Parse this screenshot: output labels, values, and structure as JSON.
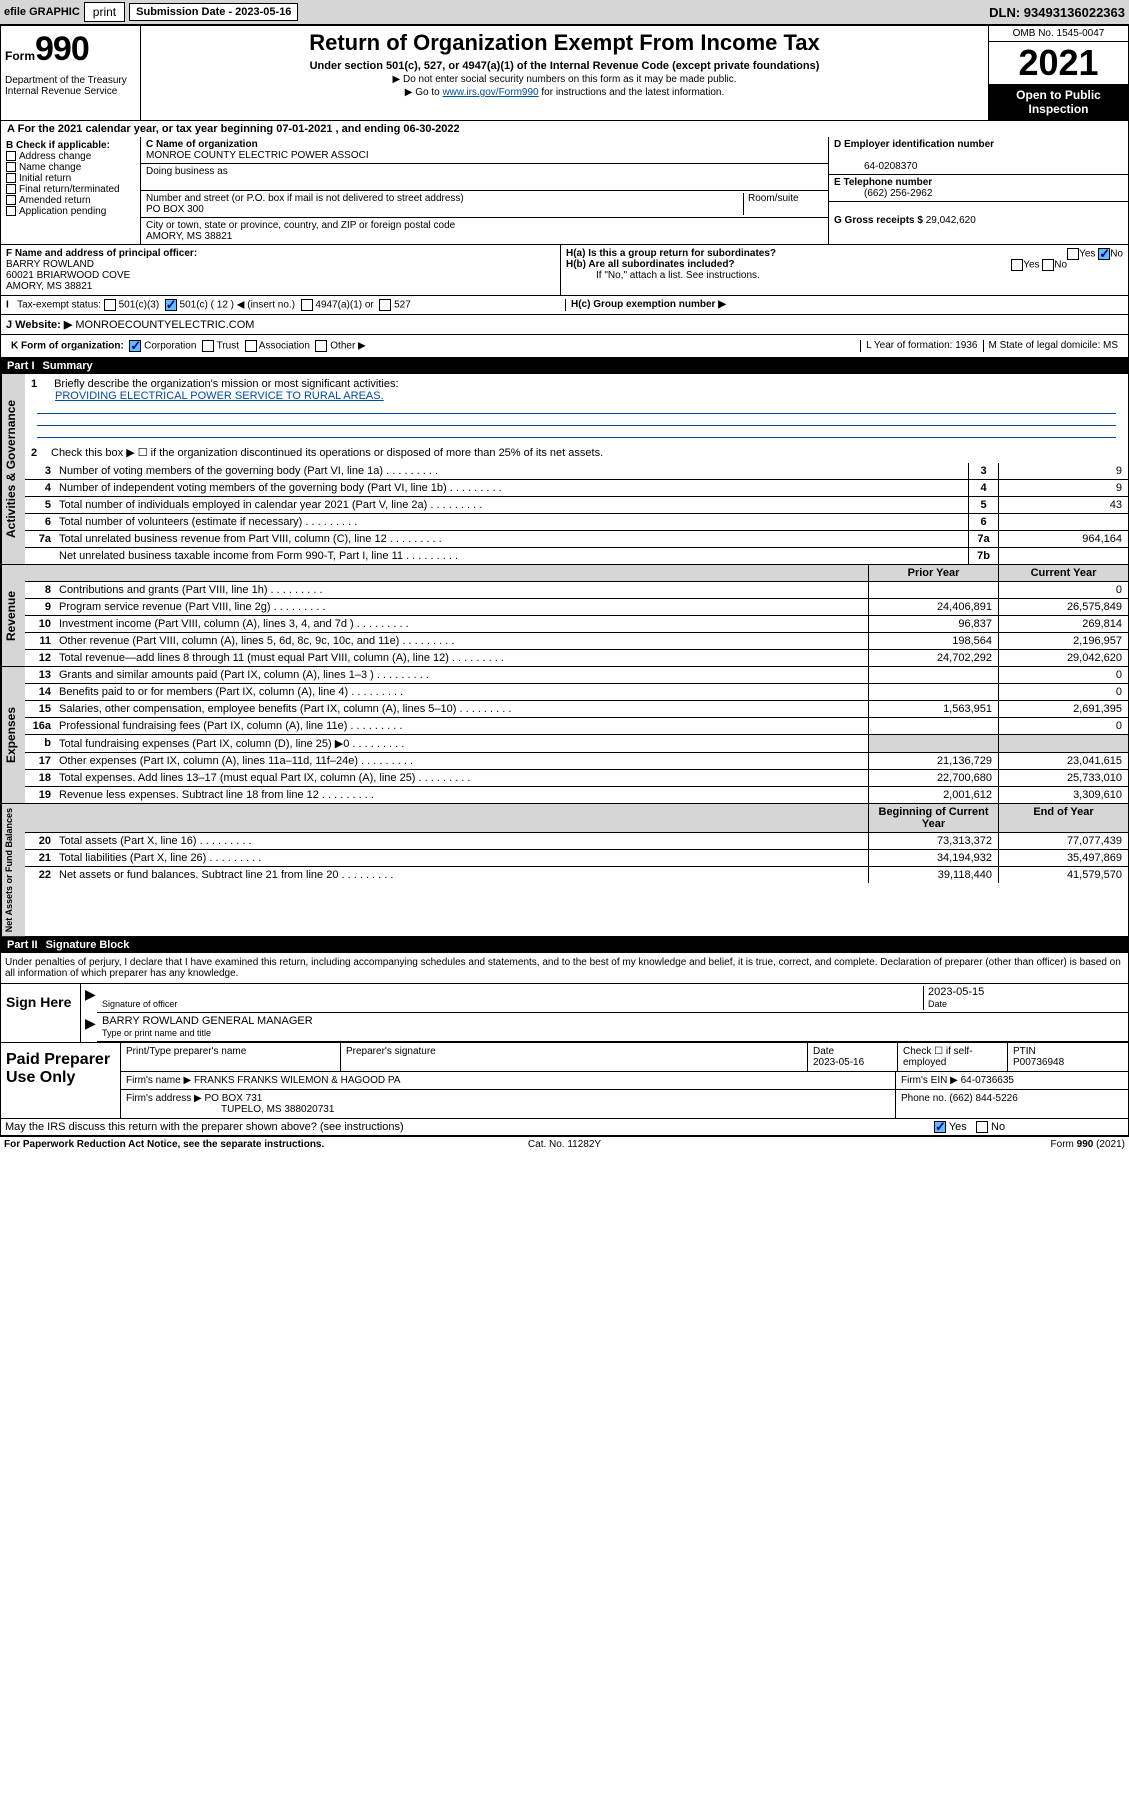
{
  "topbar": {
    "efile": "efile GRAPHIC",
    "print": "print",
    "subdate_label": "Submission Date - 2023-05-16",
    "dln": "DLN: 93493136022363"
  },
  "header": {
    "form_prefix": "Form",
    "form_number": "990",
    "dept": "Department of the Treasury\nInternal Revenue Service",
    "title": "Return of Organization Exempt From Income Tax",
    "subtitle": "Under section 501(c), 527, or 4947(a)(1) of the Internal Revenue Code (except private foundations)",
    "note1": "▶ Do not enter social security numbers on this form as it may be made public.",
    "note2_pre": "▶ Go to ",
    "note2_link": "www.irs.gov/Form990",
    "note2_post": " for instructions and the latest information.",
    "omb": "OMB No. 1545-0047",
    "year": "2021",
    "open": "Open to Public Inspection"
  },
  "period": {
    "text": "For the 2021 calendar year, or tax year beginning 07-01-2021   , and ending 06-30-2022",
    "label": "A"
  },
  "section_b": {
    "label": "B Check if applicable:",
    "opts": [
      "Address change",
      "Name change",
      "Initial return",
      "Final return/terminated",
      "Amended return",
      "Application pending"
    ]
  },
  "section_c": {
    "name_label": "C Name of organization",
    "name": "MONROE COUNTY ELECTRIC POWER ASSOCI",
    "dba_label": "Doing business as",
    "dba": "",
    "addr_label": "Number and street (or P.O. box if mail is not delivered to street address)",
    "room_label": "Room/suite",
    "addr": "PO BOX 300",
    "city_label": "City or town, state or province, country, and ZIP or foreign postal code",
    "city": "AMORY, MS  38821"
  },
  "section_d": {
    "label": "D Employer identification number",
    "value": "64-0208370"
  },
  "section_e": {
    "label": "E Telephone number",
    "value": "(662) 256-2962"
  },
  "section_g": {
    "label": "G Gross receipts $",
    "value": "29,042,620"
  },
  "section_f": {
    "label": "F  Name and address of principal officer:",
    "name": "BARRY ROWLAND",
    "addr1": "60021 BRIARWOOD COVE",
    "addr2": "AMORY, MS  38821"
  },
  "section_h": {
    "ha": "H(a)  Is this a group return for subordinates?",
    "hb": "H(b)  Are all subordinates included?",
    "hb_note": "If \"No,\" attach a list. See instructions.",
    "hc": "H(c)  Group exemption number ▶",
    "yes": "Yes",
    "no": "No"
  },
  "section_i": {
    "label": "Tax-exempt status:",
    "opt1": "501(c)(3)",
    "opt2": "501(c) ( 12 ) ◀ (insert no.)",
    "opt3": "4947(a)(1) or",
    "opt4": "527"
  },
  "section_j": {
    "label": "J   Website: ▶",
    "value": "MONROECOUNTYELECTRIC.COM"
  },
  "section_k": {
    "label": "K Form of organization:",
    "opts": [
      "Corporation",
      "Trust",
      "Association",
      "Other ▶"
    ]
  },
  "section_l": {
    "label": "L Year of formation: 1936"
  },
  "section_m": {
    "label": "M State of legal domicile: MS"
  },
  "part1": {
    "label": "Part I",
    "title": "Summary"
  },
  "summary": {
    "line1_label": "1",
    "line1_text": "Briefly describe the organization's mission or most significant activities:",
    "line1_mission": "PROVIDING ELECTRICAL POWER SERVICE TO RURAL AREAS.",
    "line2": "Check this box ▶ ☐  if the organization discontinued its operations or disposed of more than 25% of its net assets.",
    "rows_gov": [
      {
        "n": "3",
        "t": "Number of voting members of the governing body (Part VI, line 1a)",
        "rn": "3",
        "v": "9"
      },
      {
        "n": "4",
        "t": "Number of independent voting members of the governing body (Part VI, line 1b)",
        "rn": "4",
        "v": "9"
      },
      {
        "n": "5",
        "t": "Total number of individuals employed in calendar year 2021 (Part V, line 2a)",
        "rn": "5",
        "v": "43"
      },
      {
        "n": "6",
        "t": "Total number of volunteers (estimate if necessary)",
        "rn": "6",
        "v": ""
      },
      {
        "n": "7a",
        "t": "Total unrelated business revenue from Part VIII, column (C), line 12",
        "rn": "7a",
        "v": "964,164"
      },
      {
        "n": "",
        "t": "Net unrelated business taxable income from Form 990-T, Part I, line 11",
        "rn": "7b",
        "v": ""
      }
    ],
    "prior_label": "Prior Year",
    "current_label": "Current Year",
    "beg_label": "Beginning of Current Year",
    "end_label": "End of Year",
    "rows_rev": [
      {
        "n": "8",
        "t": "Contributions and grants (Part VIII, line 1h)",
        "p": "",
        "c": "0"
      },
      {
        "n": "9",
        "t": "Program service revenue (Part VIII, line 2g)",
        "p": "24,406,891",
        "c": "26,575,849"
      },
      {
        "n": "10",
        "t": "Investment income (Part VIII, column (A), lines 3, 4, and 7d )",
        "p": "96,837",
        "c": "269,814"
      },
      {
        "n": "11",
        "t": "Other revenue (Part VIII, column (A), lines 5, 6d, 8c, 9c, 10c, and 11e)",
        "p": "198,564",
        "c": "2,196,957"
      },
      {
        "n": "12",
        "t": "Total revenue—add lines 8 through 11 (must equal Part VIII, column (A), line 12)",
        "p": "24,702,292",
        "c": "29,042,620"
      }
    ],
    "rows_exp": [
      {
        "n": "13",
        "t": "Grants and similar amounts paid (Part IX, column (A), lines 1–3 )",
        "p": "",
        "c": "0"
      },
      {
        "n": "14",
        "t": "Benefits paid to or for members (Part IX, column (A), line 4)",
        "p": "",
        "c": "0"
      },
      {
        "n": "15",
        "t": "Salaries, other compensation, employee benefits (Part IX, column (A), lines 5–10)",
        "p": "1,563,951",
        "c": "2,691,395"
      },
      {
        "n": "16a",
        "t": "Professional fundraising fees (Part IX, column (A), line 11e)",
        "p": "",
        "c": "0"
      },
      {
        "n": "b",
        "t": "Total fundraising expenses (Part IX, column (D), line 25) ▶0",
        "p": "GRAY",
        "c": "GRAY"
      },
      {
        "n": "17",
        "t": "Other expenses (Part IX, column (A), lines 11a–11d, 11f–24e)",
        "p": "21,136,729",
        "c": "23,041,615"
      },
      {
        "n": "18",
        "t": "Total expenses. Add lines 13–17 (must equal Part IX, column (A), line 25)",
        "p": "22,700,680",
        "c": "25,733,010"
      },
      {
        "n": "19",
        "t": "Revenue less expenses. Subtract line 18 from line 12",
        "p": "2,001,612",
        "c": "3,309,610"
      }
    ],
    "rows_net": [
      {
        "n": "20",
        "t": "Total assets (Part X, line 16)",
        "p": "73,313,372",
        "c": "77,077,439"
      },
      {
        "n": "21",
        "t": "Total liabilities (Part X, line 26)",
        "p": "34,194,932",
        "c": "35,497,869"
      },
      {
        "n": "22",
        "t": "Net assets or fund balances. Subtract line 21 from line 20",
        "p": "39,118,440",
        "c": "41,579,570"
      }
    ],
    "vert_gov": "Activities & Governance",
    "vert_rev": "Revenue",
    "vert_exp": "Expenses",
    "vert_net": "Net Assets or Fund Balances"
  },
  "part2": {
    "label": "Part II",
    "title": "Signature Block"
  },
  "sig": {
    "declaration": "Under penalties of perjury, I declare that I have examined this return, including accompanying schedules and statements, and to the best of my knowledge and belief, it is true, correct, and complete. Declaration of preparer (other than officer) is based on all information of which preparer has any knowledge.",
    "sign_here": "Sign Here",
    "sig_officer": "Signature of officer",
    "date": "Date",
    "sig_date": "2023-05-15",
    "name": "BARRY ROWLAND  GENERAL MANAGER",
    "name_label": "Type or print name and title"
  },
  "paid": {
    "label": "Paid Preparer Use Only",
    "h1": "Print/Type preparer's name",
    "h2": "Preparer's signature",
    "h3": "Date",
    "h3v": "2023-05-16",
    "h4": "Check ☐ if self-employed",
    "h5": "PTIN",
    "h5v": "P00736948",
    "firm_name_label": "Firm's name    ▶",
    "firm_name": "FRANKS FRANKS WILEMON & HAGOOD PA",
    "firm_ein_label": "Firm's EIN ▶",
    "firm_ein": "64-0736635",
    "firm_addr_label": "Firm's address ▶",
    "firm_addr1": "PO BOX 731",
    "firm_addr2": "TUPELO, MS  388020731",
    "phone_label": "Phone no.",
    "phone": "(662) 844-5226"
  },
  "bottom": {
    "discuss": "May the IRS discuss this return with the preparer shown above? (see instructions)",
    "yes": "Yes",
    "no": "No",
    "paperwork": "For Paperwork Reduction Act Notice, see the separate instructions.",
    "cat": "Cat. No. 11282Y",
    "form": "Form 990 (2021)"
  }
}
